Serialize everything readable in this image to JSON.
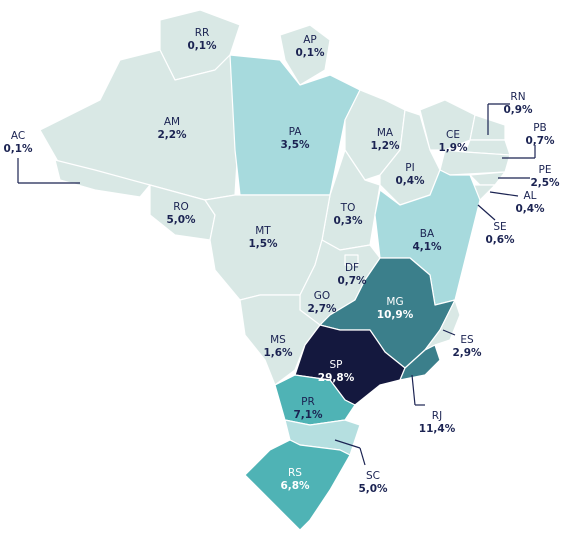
{
  "states": [
    {
      "code": "RR",
      "value": "0,1%",
      "color": "#d9e8e5"
    },
    {
      "code": "AP",
      "value": "0,1%",
      "color": "#d9e8e5"
    },
    {
      "code": "AM",
      "value": "2,2%",
      "color": "#d9e8e5"
    },
    {
      "code": "PA",
      "value": "3,5%",
      "color": "#a7dadd"
    },
    {
      "code": "AC",
      "value": "0,1%",
      "color": "#d9e8e5"
    },
    {
      "code": "MA",
      "value": "1,2%",
      "color": "#d9e8e5"
    },
    {
      "code": "CE",
      "value": "1,9%",
      "color": "#d9e8e5"
    },
    {
      "code": "RN",
      "value": "0,9%",
      "color": "#d9e8e5"
    },
    {
      "code": "PB",
      "value": "0,7%",
      "color": "#d9e8e5"
    },
    {
      "code": "PE",
      "value": "2,5%",
      "color": "#d9e8e5"
    },
    {
      "code": "AL",
      "value": "0,4%",
      "color": "#d9e8e5"
    },
    {
      "code": "SE",
      "value": "0,6%",
      "color": "#d9e8e5"
    },
    {
      "code": "PI",
      "value": "0,4%",
      "color": "#d9e8e5"
    },
    {
      "code": "TO",
      "value": "0,3%",
      "color": "#d9e8e5"
    },
    {
      "code": "RO",
      "value": "5,0%",
      "color": "#d9e8e5"
    },
    {
      "code": "MT",
      "value": "1,5%",
      "color": "#d9e8e5"
    },
    {
      "code": "BA",
      "value": "4,1%",
      "color": "#a7dadd"
    },
    {
      "code": "DF",
      "value": "0,7%",
      "color": "#d9e8e5"
    },
    {
      "code": "GO",
      "value": "2,7%",
      "color": "#d9e8e5"
    },
    {
      "code": "MG",
      "value": "10,9%",
      "color": "#3b7f8b"
    },
    {
      "code": "ES",
      "value": "2,9%",
      "color": "#d9e8e5"
    },
    {
      "code": "MS",
      "value": "1,6%",
      "color": "#d9e8e5"
    },
    {
      "code": "SP",
      "value": "29,8%",
      "color": "#14183e"
    },
    {
      "code": "RJ",
      "value": "11,4%",
      "color": "#3b7f8b"
    },
    {
      "code": "PR",
      "value": "7,1%",
      "color": "#4fb3b5"
    },
    {
      "code": "SC",
      "value": "5,0%",
      "color": "#b5dfe0"
    },
    {
      "code": "RS",
      "value": "6,8%",
      "color": "#4fb3b5"
    }
  ]
}
